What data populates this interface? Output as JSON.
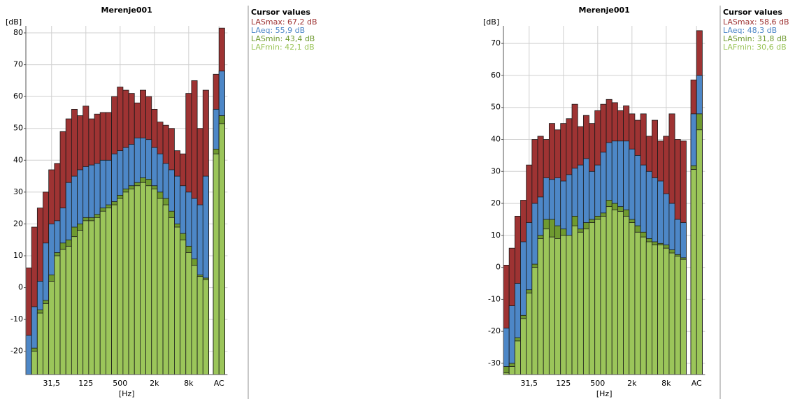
{
  "chart_data": [
    {
      "type": "bar",
      "title": "Merenje001",
      "ylabel": "[dB]",
      "xlabel": "[Hz]",
      "categories": [
        null,
        null,
        null,
        null,
        "31,5",
        null,
        null,
        null,
        null,
        null,
        "125",
        null,
        null,
        null,
        null,
        null,
        "500",
        null,
        null,
        null,
        null,
        null,
        "2k",
        null,
        null,
        null,
        null,
        null,
        "8k",
        null,
        null,
        null,
        null,
        "AC"
      ],
      "ylim": [
        -27.3,
        82.2
      ],
      "yticks": [
        -20,
        -10,
        0,
        10,
        20,
        30,
        40,
        50,
        60,
        70,
        80
      ],
      "grid": true,
      "legend_title": "Cursor values",
      "series": [
        {
          "name": "LASmax: 67,2 dB",
          "color": "#9e3333",
          "values": [
            6.2,
            19,
            25,
            30,
            37,
            39,
            49,
            53,
            56,
            54,
            57,
            53,
            54.5,
            55,
            55,
            60,
            63,
            62,
            61,
            58,
            62,
            60,
            56,
            52,
            51,
            50,
            43,
            42,
            61,
            65,
            50,
            62,
            67,
            81.5
          ]
        },
        {
          "name": "LAeq: 55,9 dB",
          "color": "#4d87c7",
          "values": [
            -15,
            -6,
            2,
            14,
            20,
            21,
            25,
            33,
            35,
            37,
            38,
            38.5,
            39,
            40,
            40,
            42,
            43,
            44,
            45,
            47,
            47,
            46.5,
            44,
            42,
            39,
            37,
            35,
            32,
            30,
            28,
            26,
            35,
            56,
            68
          ]
        },
        {
          "name": "LASmin: 43,4 dB",
          "color": "#6f9a30",
          "values": [
            -28,
            -19,
            -7,
            -4,
            4,
            11,
            14,
            15,
            19,
            20,
            22,
            22,
            23,
            25,
            26,
            27,
            29,
            31,
            32,
            33,
            34.5,
            34,
            32,
            30,
            28,
            24,
            20,
            17,
            13,
            9,
            4,
            3,
            43.5,
            54
          ]
        },
        {
          "name": "LAFmin: 42,1 dB",
          "color": "#9bc55a",
          "values": [
            -28,
            -20,
            -8,
            -5,
            2,
            10,
            12,
            13,
            16,
            18,
            21,
            21,
            22,
            24,
            25,
            26,
            28,
            30,
            31,
            32,
            33,
            32,
            31,
            28,
            26,
            22,
            19,
            15,
            11,
            7,
            3.5,
            2.5,
            42,
            51.5
          ]
        }
      ]
    },
    {
      "type": "bar",
      "title": "Merenje001",
      "ylabel": "[dB]",
      "xlabel": "[Hz]",
      "categories": [
        null,
        null,
        null,
        null,
        "31,5",
        null,
        null,
        null,
        null,
        null,
        "125",
        null,
        null,
        null,
        null,
        null,
        "500",
        null,
        null,
        null,
        null,
        null,
        "2k",
        null,
        null,
        null,
        null,
        null,
        "8k",
        null,
        null,
        null,
        null,
        "AC"
      ],
      "ylim": [
        -33.5,
        75.5
      ],
      "yticks": [
        -30,
        -20,
        -10,
        0,
        10,
        20,
        30,
        40,
        50,
        60,
        70
      ],
      "grid": true,
      "legend_title": "Cursor values",
      "series": [
        {
          "name": "LASmax: 58,6 dB",
          "color": "#9e3333",
          "values": [
            0.7,
            6,
            16,
            21,
            32,
            40,
            41,
            40,
            45,
            43,
            45,
            46.5,
            51,
            44,
            47.5,
            45,
            49,
            51,
            52.5,
            51.5,
            49,
            50.5,
            48,
            46,
            48,
            41,
            46,
            39.5,
            41,
            48,
            40,
            39.5,
            58.6,
            74
          ]
        },
        {
          "name": "LAeq: 48,3 dB",
          "color": "#4d87c7",
          "values": [
            -19,
            -12,
            -5,
            8,
            14,
            20,
            22,
            28,
            27.5,
            28,
            27,
            29,
            31,
            32,
            34,
            30,
            32,
            36,
            39,
            39.5,
            39.5,
            39.5,
            37,
            35,
            32,
            30,
            28,
            27,
            23,
            20,
            15,
            14,
            48,
            60
          ]
        },
        {
          "name": "LASmin: 31,8 dB",
          "color": "#6f9a30",
          "values": [
            -31,
            -30,
            -22,
            -15,
            -7,
            1,
            10,
            15,
            15,
            13,
            12,
            10,
            16,
            12,
            14,
            15,
            16,
            17,
            21,
            20,
            19,
            18,
            15,
            13,
            11,
            9,
            8,
            7.5,
            7,
            5.5,
            4,
            3,
            31.8,
            48
          ]
        },
        {
          "name": "LAFmin: 30,6 dB",
          "color": "#9bc55a",
          "values": [
            -33,
            -31,
            -23,
            -16,
            -8,
            0,
            9,
            12,
            9.5,
            9,
            10,
            10,
            13,
            11,
            12,
            14,
            15,
            16,
            19,
            18,
            17.5,
            16,
            14,
            11,
            9.5,
            8,
            7,
            7,
            6,
            4.5,
            3.5,
            2.5,
            30.6,
            43
          ]
        }
      ]
    }
  ]
}
